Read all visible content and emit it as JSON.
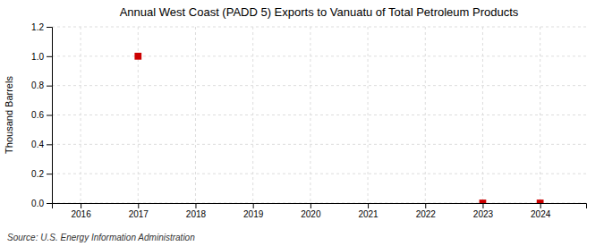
{
  "chart_data": {
    "type": "scatter",
    "title": "Annual West Coast (PADD 5) Exports to Vanuatu of Total Petroleum Products",
    "ylabel": "Thousand Barrels",
    "annotations": [
      "Source: U.S. Energy Information Administration"
    ],
    "x": [
      2017,
      2023,
      2024
    ],
    "values": [
      1.0,
      0.0,
      0.0
    ],
    "color": "#cc0000",
    "marker": "square",
    "xlim": [
      2015.5,
      2024.8
    ],
    "xticks": [
      2016,
      2017,
      2018,
      2019,
      2020,
      2021,
      2022,
      2023,
      2024
    ],
    "ylim": [
      0.0,
      1.2
    ],
    "yticks": [
      {
        "value": 0.0,
        "label": "0.0"
      },
      0.2,
      0.4,
      0.6,
      0.8,
      {
        "value": 1.0,
        "label": "1.0"
      },
      1.2
    ],
    "grid": true
  }
}
